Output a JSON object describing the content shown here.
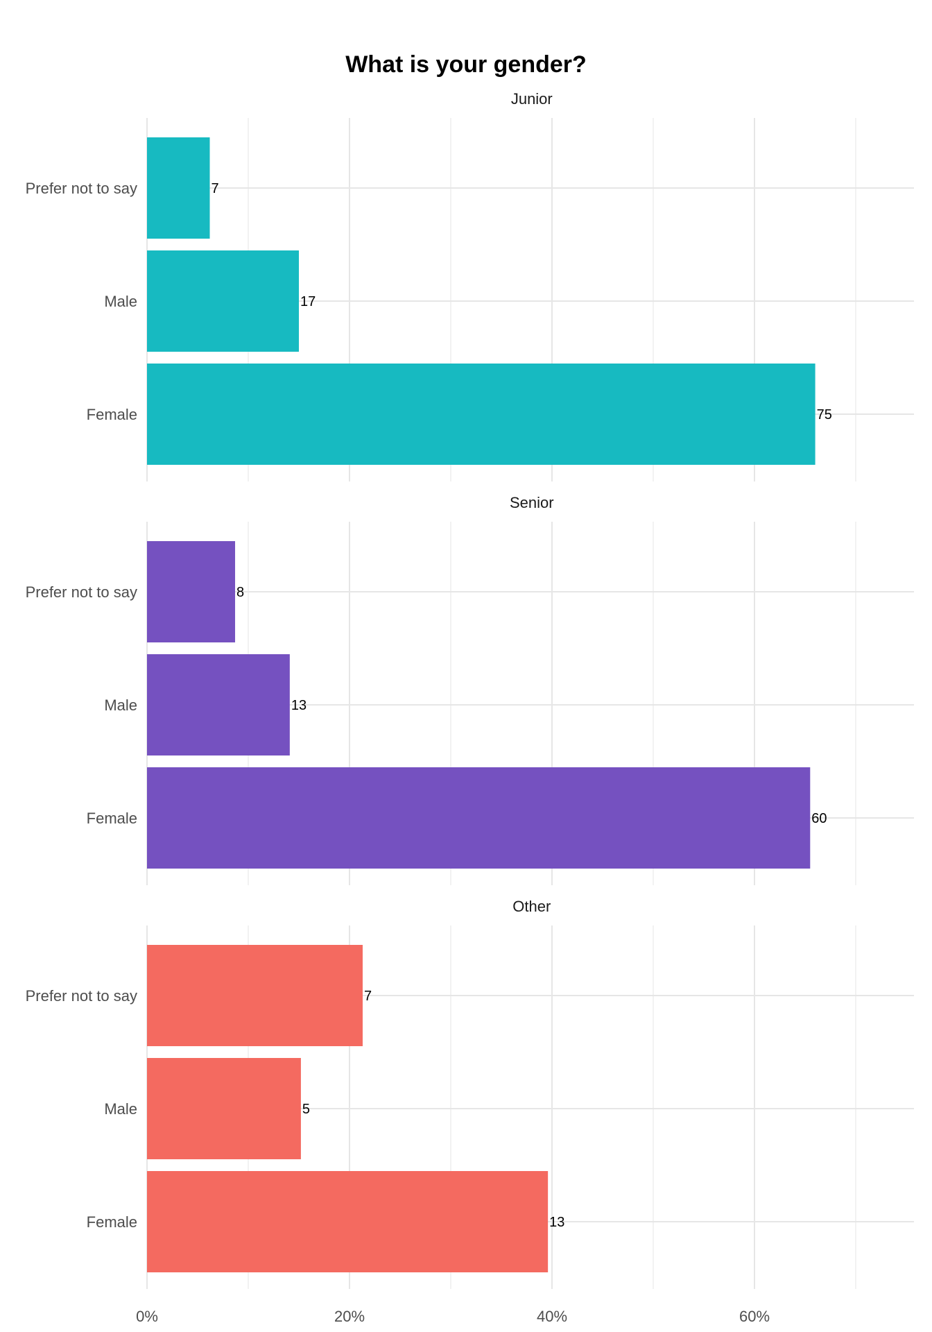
{
  "chart_data": {
    "type": "bar",
    "orientation": "horizontal",
    "title": "What is your gender?",
    "xlabel": "",
    "ylabel": "",
    "xlim": [
      0,
      0.76
    ],
    "x_ticks": [
      {
        "value": 0,
        "label": "0%"
      },
      {
        "value": 0.2,
        "label": "20%"
      },
      {
        "value": 0.4,
        "label": "40%"
      },
      {
        "value": 0.6,
        "label": "60%"
      }
    ],
    "grid": true,
    "facets": [
      {
        "panel": "Junior",
        "color": "#17BAC1",
        "bars": [
          {
            "category": "Prefer not to say",
            "value": 0.062,
            "label": "7"
          },
          {
            "category": "Male",
            "value": 0.15,
            "label": "17"
          },
          {
            "category": "Female",
            "value": 0.66,
            "label": "75"
          }
        ]
      },
      {
        "panel": "Senior",
        "color": "#7551C0",
        "bars": [
          {
            "category": "Prefer not to say",
            "value": 0.087,
            "label": "8"
          },
          {
            "category": "Male",
            "value": 0.141,
            "label": "13"
          },
          {
            "category": "Female",
            "value": 0.655,
            "label": "60"
          }
        ]
      },
      {
        "panel": "Other",
        "color": "#F46A60",
        "bars": [
          {
            "category": "Prefer not to say",
            "value": 0.213,
            "label": "7"
          },
          {
            "category": "Male",
            "value": 0.152,
            "label": "5"
          },
          {
            "category": "Female",
            "value": 0.396,
            "label": "13"
          }
        ]
      }
    ]
  }
}
